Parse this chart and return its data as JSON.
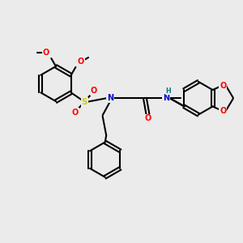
{
  "bg_color": "#ebebeb",
  "bond_color": "#000000",
  "atom_colors": {
    "O": "#ff0000",
    "N": "#0000cc",
    "S": "#cccc00",
    "H": "#007777",
    "C": "#000000"
  },
  "figsize": [
    3.0,
    3.0
  ],
  "dpi": 100,
  "xlim": [
    0,
    10
  ],
  "ylim": [
    0,
    10
  ]
}
